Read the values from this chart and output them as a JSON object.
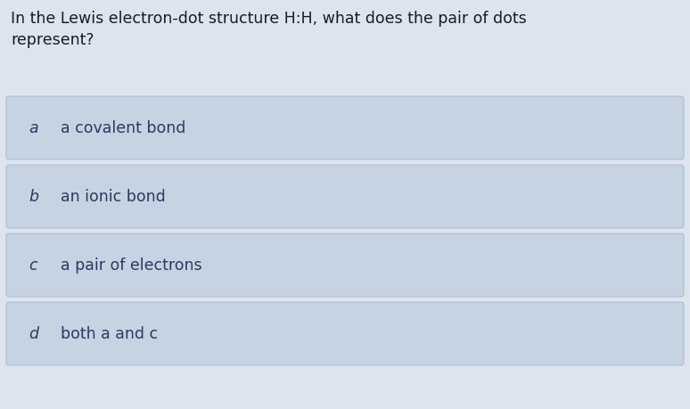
{
  "background_color": "#dde4ed",
  "question_text_line1": "In the Lewis electron-dot structure H:H, what does the pair of dots",
  "question_text_line2": "represent?",
  "question_font_size": 12.5,
  "question_text_color": "#1a1a2e",
  "options": [
    {
      "label": "a",
      "text": "a covalent bond"
    },
    {
      "label": "b",
      "text": "an ionic bond"
    },
    {
      "label": "c",
      "text": "a pair of electrons"
    },
    {
      "label": "d",
      "text": "both a and c"
    }
  ],
  "option_box_color": "#c5d3e3",
  "option_box_edge_color": "#9ab0c8",
  "option_label_color": "#2a3a5e",
  "option_text_color": "#2a3a5e",
  "option_font_size": 12.5,
  "label_font_size": 12.5
}
